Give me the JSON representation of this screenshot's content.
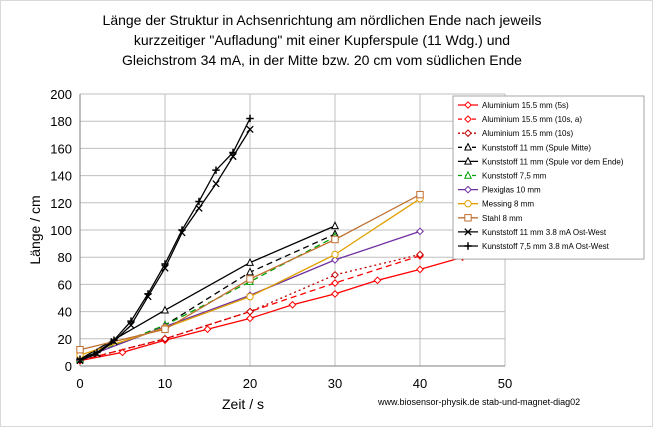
{
  "chart_data": {
    "type": "line",
    "title_lines": [
      "Länge der Struktur in Achsenrichtung am nördlichen Ende nach jeweils",
      "kurzzeitiger \"Aufladung\" mit einer Kupferspule (11 Wdg.) und",
      "Gleichstrom 34 mA,  in der Mitte bzw. 20 cm vom südlichen Ende"
    ],
    "xlabel": "Zeit / s",
    "ylabel": "Länge / cm",
    "xlim": [
      0,
      50
    ],
    "ylim": [
      0,
      200
    ],
    "xticks": [
      0,
      10,
      20,
      30,
      40,
      50
    ],
    "yticks": [
      0,
      20,
      40,
      60,
      80,
      100,
      120,
      140,
      160,
      180,
      200
    ],
    "grid": true,
    "legend_position": "top-right",
    "footer": "www.biosensor-physik.de  stab-und-magnet-diag02",
    "series": [
      {
        "name": "Aluminium 15.5 mm (5s)",
        "color": "#ff0000",
        "dash": "solid",
        "marker": "diamond",
        "x": [
          0,
          5,
          10,
          15,
          20,
          25,
          30,
          35,
          40,
          45
        ],
        "y": [
          4,
          10,
          19,
          27,
          35,
          45,
          53,
          63,
          71,
          80
        ]
      },
      {
        "name": "Aluminium 15.5 mm (10s, a)",
        "color": "#ff0000",
        "dash": "6,4",
        "marker": "diamond",
        "x": [
          0,
          10,
          20,
          30,
          40
        ],
        "y": [
          4,
          20,
          40,
          61,
          81
        ]
      },
      {
        "name": "Aluminium 15.5 mm (10s)",
        "color": "#c00000",
        "dash": "2,3",
        "marker": "diamond",
        "x": [
          0,
          10,
          20,
          30,
          40
        ],
        "y": [
          4,
          20,
          40,
          67,
          82
        ]
      },
      {
        "name": "Kunststoff 11 mm (Spule Mitte)",
        "color": "#000000",
        "dash": "6,4",
        "marker": "triangle",
        "x": [
          0,
          10,
          20,
          30
        ],
        "y": [
          5,
          30,
          69,
          97
        ]
      },
      {
        "name": "Kunststoff 11 mm (Spule vor dem Ende)",
        "color": "#000000",
        "dash": "solid",
        "marker": "triangle",
        "x": [
          0,
          10,
          20,
          30
        ],
        "y": [
          5,
          41,
          76,
          103
        ]
      },
      {
        "name": "Kunststoff 7,5 mm",
        "color": "#00a000",
        "dash": "6,4",
        "marker": "triangle",
        "x": [
          0,
          10,
          20,
          30
        ],
        "y": [
          5,
          30,
          62,
          95
        ]
      },
      {
        "name": "Plexiglas 10 mm",
        "color": "#7030a0",
        "dash": "solid",
        "marker": "diamond",
        "x": [
          0,
          10,
          20,
          30,
          40
        ],
        "y": [
          5,
          29,
          52,
          78,
          99
        ]
      },
      {
        "name": "Messing 8 mm",
        "color": "#e0a000",
        "dash": "solid",
        "marker": "circle",
        "x": [
          0,
          10,
          20,
          30,
          40
        ],
        "y": [
          8,
          28,
          51,
          82,
          123
        ]
      },
      {
        "name": "Stahl 8 mm",
        "color": "#c07030",
        "dash": "solid",
        "marker": "square",
        "x": [
          0,
          10,
          20,
          30,
          40
        ],
        "y": [
          12,
          27,
          64,
          93,
          126
        ]
      },
      {
        "name": "Kunststoff 11 mm  3.8 mA Ost-West",
        "color": "#000000",
        "dash": "solid",
        "marker": "x",
        "x": [
          0,
          2,
          4,
          6,
          8,
          10,
          12,
          14,
          16,
          18,
          20
        ],
        "y": [
          4,
          9,
          18,
          30,
          51,
          72,
          98,
          116,
          134,
          154,
          174
        ]
      },
      {
        "name": "Kunststoff 7,5 mm 3.8 mA Ost-West",
        "color": "#000000",
        "dash": "solid",
        "marker": "plus",
        "x": [
          0,
          2,
          4,
          6,
          8,
          10,
          12,
          14,
          16,
          18,
          20
        ],
        "y": [
          5,
          10,
          19,
          33,
          53,
          75,
          100,
          121,
          144,
          157,
          182
        ]
      }
    ]
  }
}
